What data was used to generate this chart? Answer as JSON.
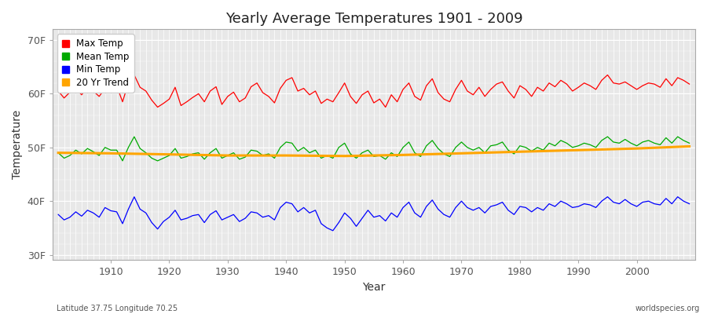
{
  "title": "Yearly Average Temperatures 1901 - 2009",
  "xlabel": "Year",
  "ylabel": "Temperature",
  "years_start": 1901,
  "years_end": 2009,
  "yticks": [
    30,
    40,
    50,
    60,
    70
  ],
  "ytick_labels": [
    "30F",
    "40F",
    "50F",
    "60F",
    "70F"
  ],
  "ylim": [
    29,
    72
  ],
  "xlim": [
    1900,
    2010
  ],
  "xticks": [
    1910,
    1920,
    1930,
    1940,
    1950,
    1960,
    1970,
    1980,
    1990,
    2000
  ],
  "bg_color": "#ffffff",
  "plot_bg_color": "#e8e8e8",
  "grid_color": "#ffffff",
  "max_color": "#ff0000",
  "mean_color": "#00aa00",
  "min_color": "#0000ff",
  "trend_color": "#ffa500",
  "legend_labels": [
    "Max Temp",
    "Mean Temp",
    "Min Temp",
    "20 Yr Trend"
  ],
  "footer_left": "Latitude 37.75 Longitude 70.25",
  "footer_right": "worldspecies.org",
  "max_temps": [
    60.5,
    59.2,
    60.3,
    61.0,
    59.8,
    61.2,
    60.5,
    59.5,
    61.0,
    62.0,
    61.5,
    58.5,
    62.0,
    63.5,
    61.2,
    60.5,
    58.8,
    57.5,
    58.2,
    59.0,
    61.2,
    57.8,
    58.5,
    59.3,
    60.0,
    58.5,
    60.5,
    61.3,
    58.0,
    59.5,
    60.3,
    58.5,
    59.2,
    61.3,
    62.0,
    60.2,
    59.5,
    58.3,
    61.0,
    62.5,
    63.0,
    60.5,
    61.0,
    59.8,
    60.5,
    58.2,
    59.0,
    58.5,
    60.2,
    62.0,
    59.5,
    58.2,
    59.8,
    60.5,
    58.3,
    59.0,
    57.5,
    59.8,
    58.5,
    60.8,
    62.0,
    59.5,
    58.8,
    61.5,
    62.8,
    60.2,
    59.0,
    58.5,
    60.8,
    62.5,
    60.5,
    59.8,
    61.2,
    59.5,
    60.8,
    61.8,
    62.2,
    60.5,
    59.2,
    61.5,
    60.8,
    59.5,
    61.2,
    60.5,
    62.0,
    61.3,
    62.5,
    61.8,
    60.5,
    61.2,
    62.0,
    61.5,
    60.8,
    62.5,
    63.5,
    62.0,
    61.8,
    62.2,
    61.5,
    60.8,
    61.5,
    62.0,
    61.8,
    61.2,
    62.8,
    61.5,
    63.0,
    62.5,
    61.8
  ],
  "mean_temps": [
    49.0,
    48.0,
    48.5,
    49.5,
    48.8,
    49.8,
    49.2,
    48.5,
    50.0,
    49.5,
    49.5,
    47.5,
    50.0,
    52.0,
    49.8,
    49.0,
    48.0,
    47.5,
    48.0,
    48.5,
    49.8,
    48.0,
    48.3,
    48.8,
    49.0,
    47.8,
    49.0,
    49.8,
    48.0,
    48.5,
    49.0,
    47.8,
    48.2,
    49.5,
    49.3,
    48.5,
    48.8,
    48.0,
    50.0,
    51.0,
    50.8,
    49.3,
    50.0,
    49.0,
    49.5,
    48.0,
    48.5,
    48.0,
    50.0,
    50.8,
    48.8,
    48.0,
    49.0,
    49.5,
    48.3,
    48.5,
    47.8,
    49.0,
    48.3,
    50.0,
    51.0,
    49.0,
    48.3,
    50.3,
    51.3,
    49.8,
    48.8,
    48.3,
    50.0,
    51.0,
    50.0,
    49.5,
    50.0,
    49.0,
    50.3,
    50.5,
    51.0,
    49.5,
    48.8,
    50.3,
    50.0,
    49.3,
    50.0,
    49.5,
    50.8,
    50.3,
    51.3,
    50.8,
    50.0,
    50.3,
    50.8,
    50.5,
    50.0,
    51.3,
    52.0,
    51.0,
    50.8,
    51.5,
    50.8,
    50.3,
    51.0,
    51.3,
    50.8,
    50.5,
    51.8,
    50.8,
    52.0,
    51.3,
    50.8
  ],
  "min_temps": [
    37.5,
    36.5,
    37.0,
    38.0,
    37.2,
    38.3,
    37.8,
    37.0,
    38.8,
    38.2,
    38.0,
    35.8,
    38.5,
    40.8,
    38.5,
    37.8,
    36.0,
    34.8,
    36.2,
    37.0,
    38.3,
    36.5,
    36.8,
    37.3,
    37.5,
    36.0,
    37.5,
    38.2,
    36.5,
    37.0,
    37.5,
    36.2,
    36.8,
    38.0,
    37.8,
    37.0,
    37.3,
    36.5,
    38.8,
    39.8,
    39.5,
    38.0,
    38.8,
    37.8,
    38.3,
    35.8,
    35.0,
    34.5,
    36.0,
    37.8,
    36.8,
    35.3,
    36.8,
    38.3,
    37.0,
    37.3,
    36.3,
    37.8,
    37.0,
    38.8,
    39.8,
    37.8,
    37.0,
    39.0,
    40.2,
    38.5,
    37.5,
    37.0,
    38.8,
    40.0,
    38.8,
    38.3,
    38.8,
    37.8,
    39.0,
    39.3,
    39.8,
    38.3,
    37.5,
    39.0,
    38.8,
    38.0,
    38.8,
    38.3,
    39.5,
    39.0,
    40.0,
    39.5,
    38.8,
    39.0,
    39.5,
    39.3,
    38.8,
    40.0,
    40.8,
    39.8,
    39.5,
    40.3,
    39.5,
    39.0,
    39.8,
    40.0,
    39.5,
    39.3,
    40.5,
    39.5,
    40.8,
    40.0,
    39.5
  ],
  "trend_years": [
    1901,
    1910,
    1920,
    1930,
    1940,
    1950,
    1960,
    1970,
    1980,
    1990,
    2000,
    2009
  ],
  "trend_vals": [
    49.0,
    48.9,
    48.7,
    48.5,
    48.5,
    48.4,
    48.6,
    48.9,
    49.2,
    49.5,
    49.8,
    50.2
  ]
}
